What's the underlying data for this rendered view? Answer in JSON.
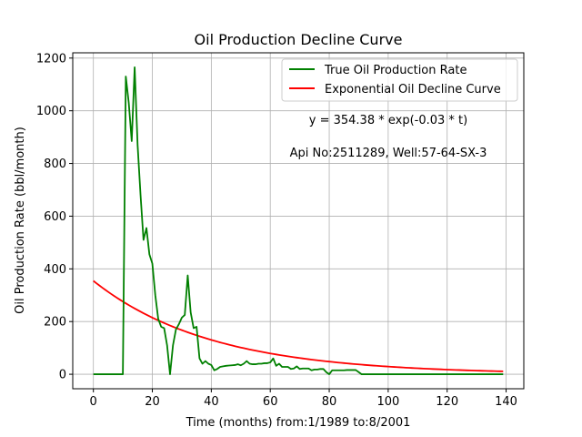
{
  "chart_data": {
    "type": "line",
    "title": "Oil Production Decline Curve",
    "xlabel": "Time (months) from:1/1989 to:8/2001",
    "ylabel": "Oil Production Rate (bbl/month)",
    "xlim": [
      -7,
      146
    ],
    "ylim": [
      -55,
      1220
    ],
    "xticks": [
      0,
      20,
      40,
      60,
      80,
      100,
      120,
      140
    ],
    "yticks": [
      0,
      200,
      400,
      600,
      800,
      1000,
      1200
    ],
    "grid": true,
    "legend_position": "top-right",
    "annotations": [
      "y = 354.38 * exp(-0.03 * t)",
      "Api No:2511289, Well:57-64-SX-3"
    ],
    "series": [
      {
        "name": "True Oil Production Rate",
        "color": "#008000",
        "x": [
          0,
          1,
          2,
          3,
          4,
          5,
          6,
          7,
          8,
          9,
          10,
          11,
          12,
          13,
          14,
          15,
          16,
          17,
          18,
          19,
          20,
          21,
          22,
          23,
          24,
          25,
          26,
          27,
          28,
          29,
          30,
          31,
          32,
          33,
          34,
          35,
          36,
          37,
          38,
          39,
          40,
          41,
          42,
          43,
          44,
          45,
          46,
          47,
          48,
          49,
          50,
          51,
          52,
          53,
          54,
          55,
          56,
          57,
          58,
          59,
          60,
          61,
          62,
          63,
          64,
          65,
          66,
          67,
          68,
          69,
          70,
          71,
          72,
          73,
          74,
          75,
          76,
          77,
          78,
          79,
          80,
          81,
          82,
          83,
          84,
          85,
          86,
          87,
          88,
          89,
          90,
          91,
          92,
          93,
          94,
          95,
          96,
          97,
          98,
          99,
          100,
          101,
          102,
          103,
          104,
          105,
          106,
          107,
          108,
          109,
          110,
          111,
          112,
          113,
          114,
          115,
          116,
          117,
          118,
          119,
          120,
          121,
          122,
          123,
          124,
          125,
          126,
          127,
          128,
          129,
          130,
          131,
          132,
          133,
          134,
          135,
          136,
          137,
          138,
          139
        ],
        "y": [
          0,
          0,
          0,
          0,
          0,
          0,
          0,
          0,
          0,
          0,
          0,
          1130,
          1030,
          885,
          1165,
          870,
          680,
          510,
          555,
          455,
          420,
          300,
          210,
          180,
          175,
          110,
          0,
          110,
          170,
          190,
          215,
          225,
          375,
          235,
          175,
          180,
          60,
          40,
          50,
          40,
          35,
          15,
          20,
          28,
          30,
          32,
          33,
          34,
          35,
          38,
          34,
          40,
          50,
          40,
          38,
          38,
          40,
          40,
          42,
          42,
          45,
          60,
          32,
          40,
          28,
          28,
          28,
          20,
          22,
          30,
          20,
          22,
          22,
          22,
          15,
          18,
          18,
          20,
          20,
          8,
          0,
          15,
          15,
          15,
          15,
          15,
          16,
          16,
          16,
          16,
          8,
          0,
          0,
          0,
          0,
          0,
          0,
          0,
          0,
          0,
          0,
          0,
          0,
          0,
          0,
          0,
          0,
          0,
          0,
          0,
          0,
          0,
          0,
          0,
          0,
          0,
          0,
          0,
          0,
          0,
          0,
          0,
          0,
          0,
          0,
          0,
          0,
          0,
          0,
          0,
          0,
          0,
          0,
          0,
          0,
          0,
          0,
          0,
          0,
          0
        ]
      },
      {
        "name": "Exponential Oil Decline Curve",
        "color": "#ff0000",
        "function": "354.38 * exp(-0.025 * t)",
        "x_range": [
          0,
          139
        ]
      }
    ]
  }
}
